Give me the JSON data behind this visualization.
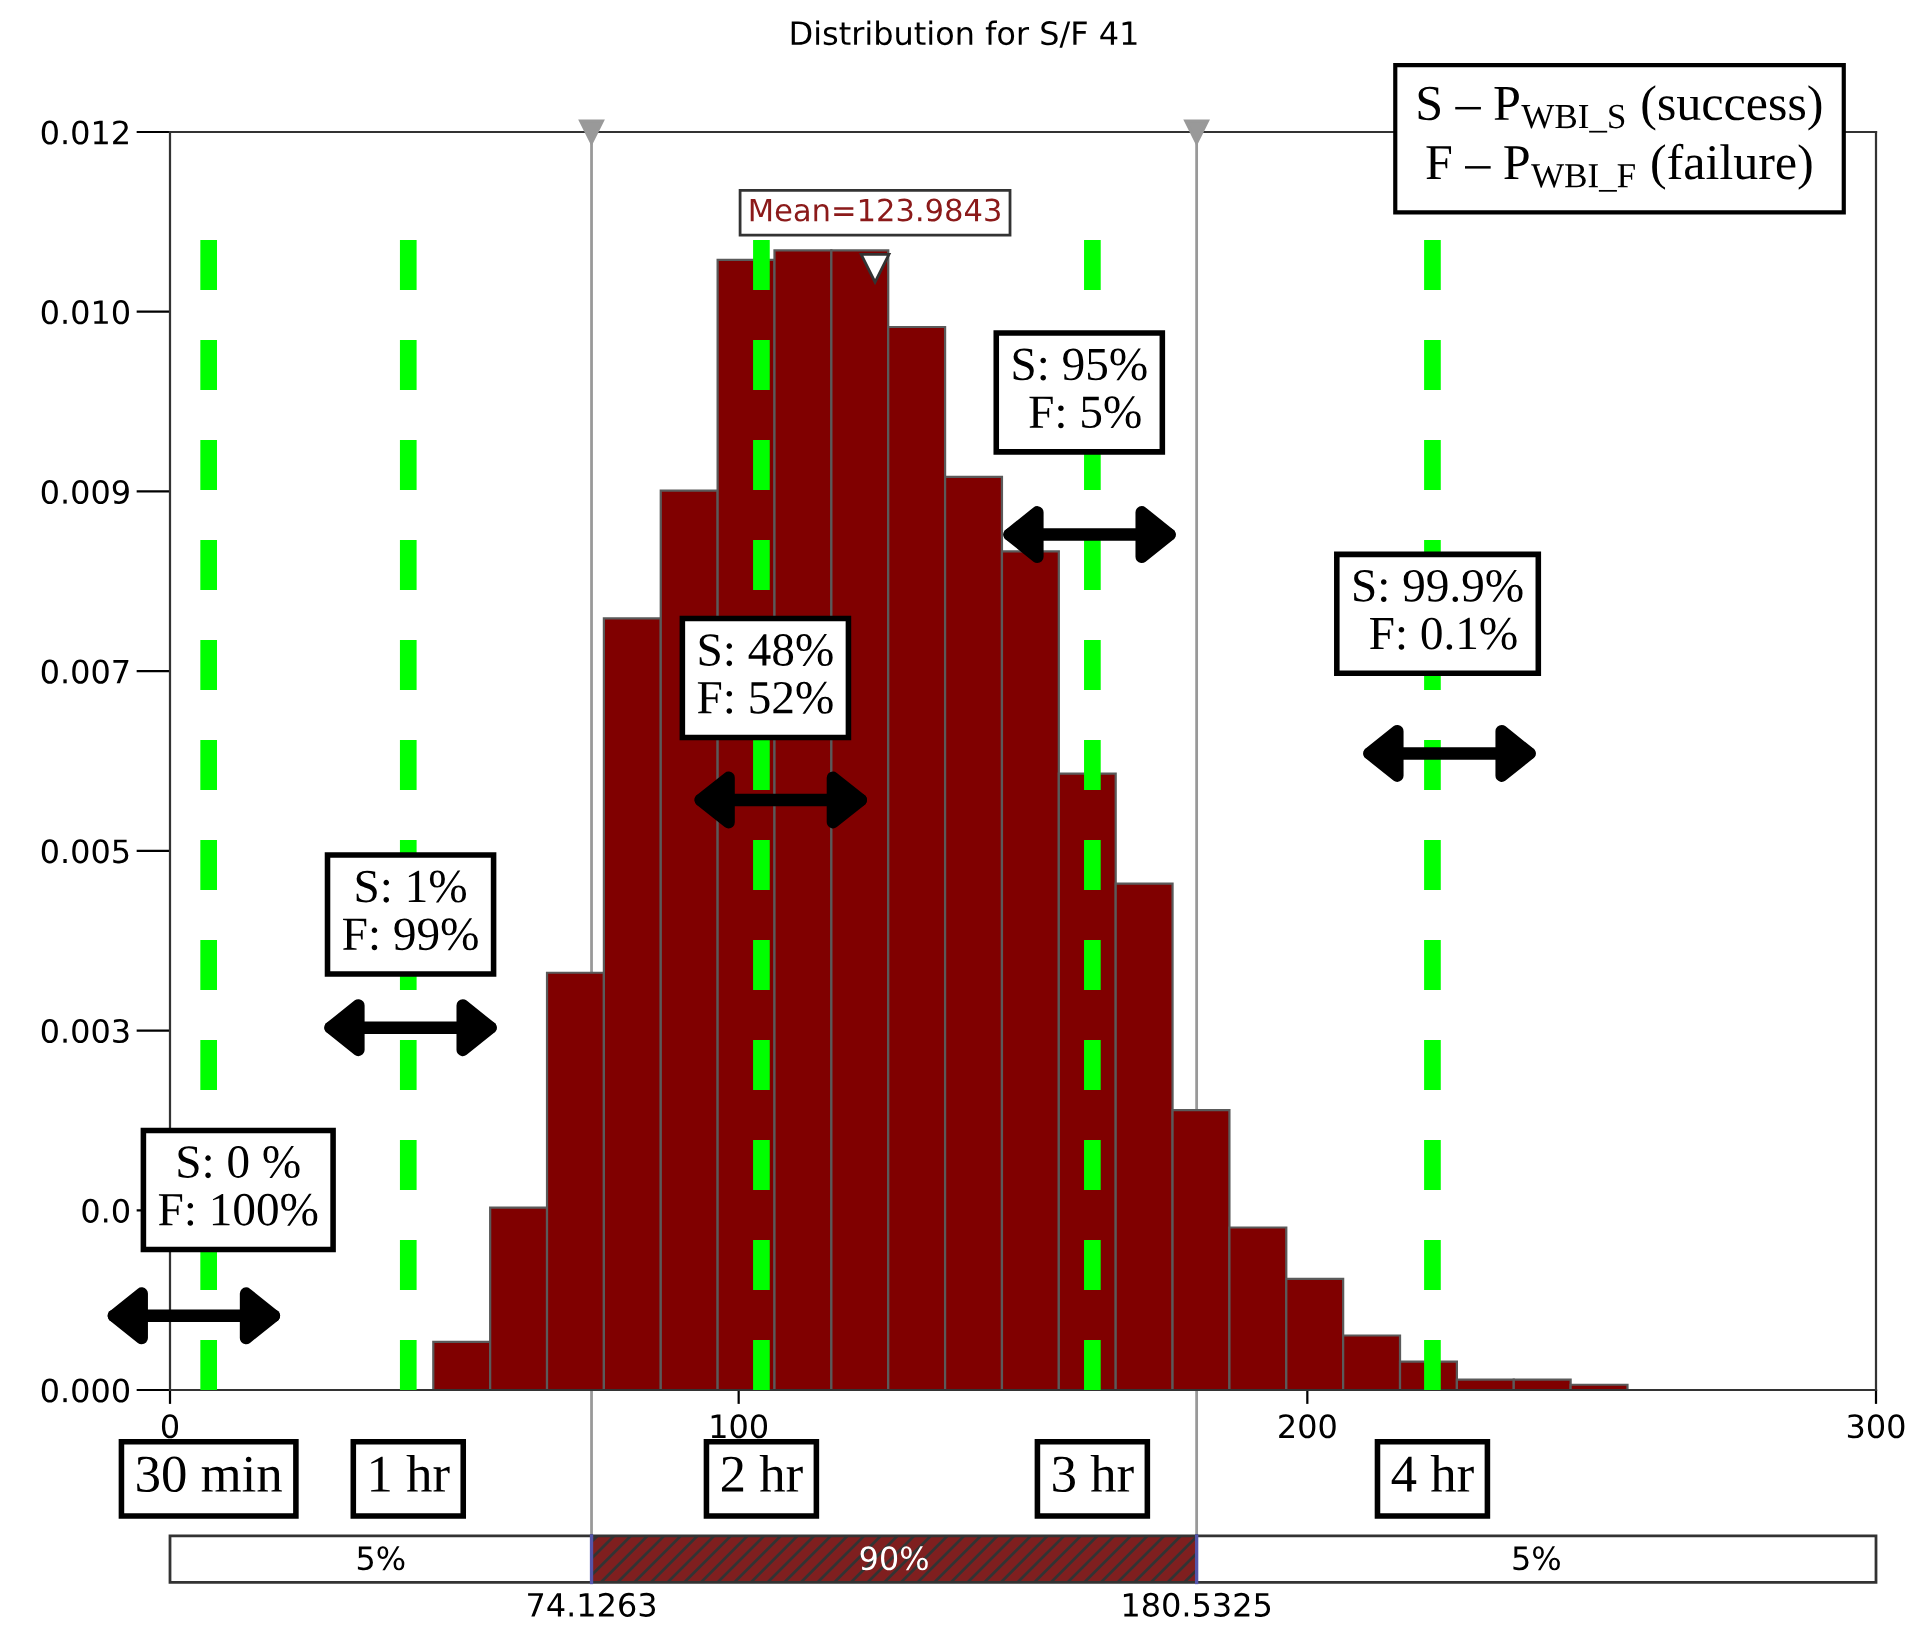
{
  "chart_data": {
    "type": "histogram",
    "title": "Distribution for S/F 41",
    "bins": [
      46.3,
      56.3,
      66.3,
      76.3,
      86.3,
      96.3,
      106.3,
      116.3,
      126.3,
      136.3,
      146.3,
      156.3,
      166.3,
      176.3,
      186.3,
      196.3,
      206.3,
      216.3,
      226.3,
      236.3,
      246.3,
      256.3
    ],
    "values": [
      0.00046,
      0.00174,
      0.00398,
      0.00736,
      0.00858,
      0.01078,
      0.01087,
      0.01087,
      0.01014,
      0.00871,
      0.008,
      0.00588,
      0.00483,
      0.00267,
      0.00155,
      0.00106,
      0.00052,
      0.00027,
      0.0001,
      0.0001,
      5e-05
    ],
    "color": "#800000",
    "xlim": [
      0,
      300
    ],
    "xticks": [
      0,
      100,
      200,
      300
    ],
    "ylim": [
      0,
      0.012
    ],
    "yticks": [
      {
        "value": 0,
        "label": "0.000"
      },
      {
        "value": 0.001714,
        "label": "0.0"
      },
      {
        "value": 0.003429,
        "label": "0.003"
      },
      {
        "value": 0.005143,
        "label": "0.005"
      },
      {
        "value": 0.006857,
        "label": "0.007"
      },
      {
        "value": 0.008571,
        "label": "0.009"
      },
      {
        "value": 0.010286,
        "label": "0.010"
      },
      {
        "value": 0.012,
        "label": "0.012"
      }
    ],
    "grid": false,
    "ref_lines": [
      {
        "axis": "x",
        "value": 6.8,
        "label": "30 min",
        "color": "#00ff00",
        "line_style": "dashed"
      },
      {
        "axis": "x",
        "value": 41.9,
        "label": "1 hr",
        "color": "#00ff00",
        "line_style": "dashed"
      },
      {
        "axis": "x",
        "value": 104.0,
        "label": "2 hr",
        "color": "#00ff00",
        "line_style": "dashed"
      },
      {
        "axis": "x",
        "value": 162.2,
        "label": "3 hr",
        "color": "#00ff00",
        "line_style": "dashed"
      },
      {
        "axis": "x",
        "value": 222.0,
        "label": "4 hr",
        "color": "#00ff00",
        "line_style": "dashed"
      },
      {
        "axis": "x",
        "value": 74.1263,
        "label": "74.1263",
        "color": "#999999",
        "line_style": "solid"
      },
      {
        "axis": "x",
        "value": 180.5325,
        "label": "180.5325",
        "color": "#999999",
        "line_style": "solid"
      }
    ],
    "annotations": [
      "S – P$_{WBI_S}$ (success)\nF – P$_{WBI_F}$ (failure)",
      {
        "text": "Mean=123.9843",
        "x": 123.9843,
        "y": 0.0107
      },
      "S: 0 %\nF: 100%",
      "S: 1%\nF: 99%",
      "S: 48%\nF: 52%",
      "S: 95%\n F: 5%",
      "S: 99.9%\n F: 0.1%",
      "5%",
      "90%",
      "5%"
    ]
  }
}
